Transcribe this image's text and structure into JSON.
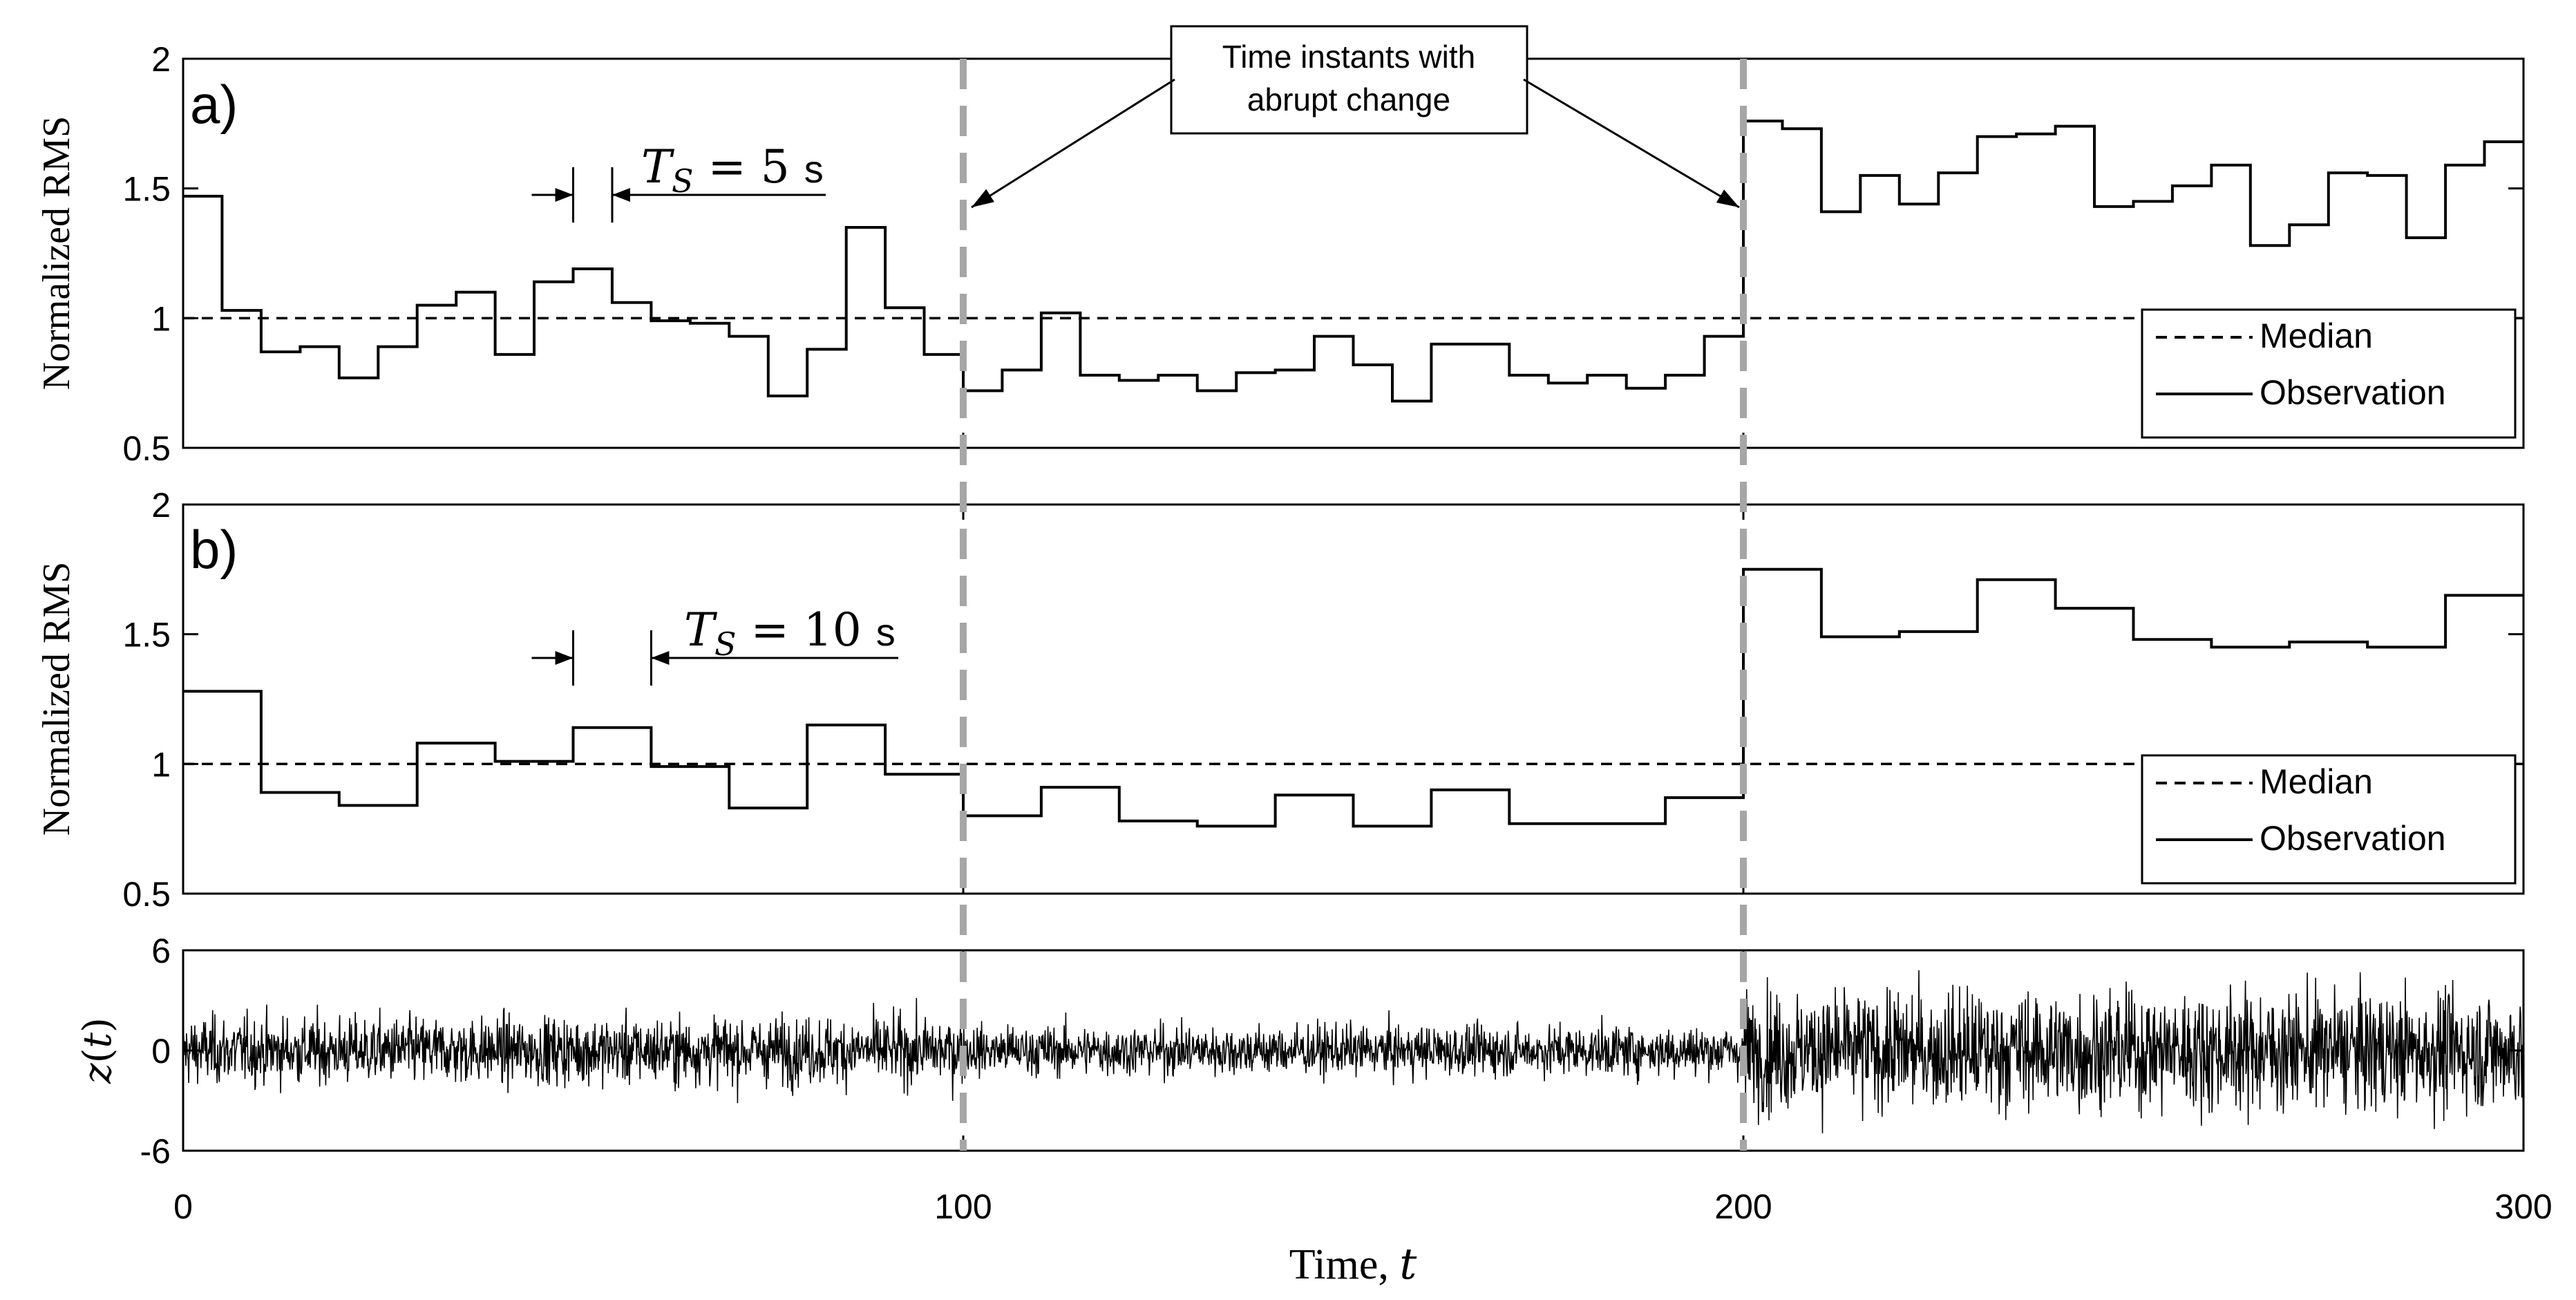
{
  "chart_data": [
    {
      "id": "a",
      "type": "line",
      "style": "step",
      "panel_label": "a)",
      "ylabel": "Normalized RMS",
      "xlim": [
        0,
        300
      ],
      "ylim": [
        0.5,
        2
      ],
      "yticks": [
        "0.5",
        "1",
        "1.5",
        "2"
      ],
      "ytick_values": [
        0.5,
        1,
        1.5,
        2
      ],
      "sampling": {
        "symbol": "T",
        "subscript": "S",
        "eq": "= 5",
        "unit": "s",
        "bracket": [
          50,
          55
        ]
      },
      "series": [
        {
          "name": "Median",
          "style": "dashed",
          "values": [
            1.0,
            1.0
          ],
          "x": [
            0,
            300
          ]
        },
        {
          "name": "Observation",
          "style": "solid",
          "step": 5,
          "values": [
            1.47,
            1.03,
            0.87,
            0.89,
            0.77,
            0.89,
            1.05,
            1.1,
            0.86,
            1.14,
            1.19,
            1.06,
            0.99,
            0.98,
            0.93,
            0.7,
            0.88,
            1.35,
            1.04,
            0.86,
            0.72,
            0.8,
            1.02,
            0.78,
            0.76,
            0.78,
            0.72,
            0.79,
            0.8,
            0.93,
            0.82,
            0.68,
            0.9,
            0.9,
            0.78,
            0.75,
            0.78,
            0.73,
            0.78,
            0.93,
            1.76,
            1.73,
            1.41,
            1.55,
            1.44,
            1.56,
            1.7,
            1.71,
            1.74,
            1.43,
            1.45,
            1.51,
            1.59,
            1.28,
            1.36,
            1.56,
            1.55,
            1.31,
            1.59,
            1.68
          ]
        }
      ],
      "legend": {
        "position": "bottom-right",
        "entries": [
          "Median",
          "Observation"
        ]
      }
    },
    {
      "id": "b",
      "type": "line",
      "style": "step",
      "panel_label": "b)",
      "ylabel": "Normalized RMS",
      "xlim": [
        0,
        300
      ],
      "ylim": [
        0.5,
        2
      ],
      "yticks": [
        "0.5",
        "1",
        "1.5",
        "2"
      ],
      "ytick_values": [
        0.5,
        1,
        1.5,
        2
      ],
      "sampling": {
        "symbol": "T",
        "subscript": "S",
        "eq": "= 10",
        "unit": "s",
        "bracket": [
          50,
          60
        ]
      },
      "series": [
        {
          "name": "Median",
          "style": "dashed",
          "values": [
            1.0,
            1.0
          ],
          "x": [
            0,
            300
          ]
        },
        {
          "name": "Observation",
          "style": "solid",
          "step": 10,
          "values": [
            1.28,
            0.89,
            0.84,
            1.08,
            1.01,
            1.14,
            0.99,
            0.83,
            1.15,
            0.96,
            0.8,
            0.91,
            0.78,
            0.76,
            0.88,
            0.76,
            0.9,
            0.77,
            0.77,
            0.87,
            1.75,
            1.49,
            1.51,
            1.71,
            1.6,
            1.48,
            1.45,
            1.47,
            1.45,
            1.65
          ]
        }
      ],
      "legend": {
        "position": "bottom-right",
        "entries": [
          "Median",
          "Observation"
        ]
      }
    },
    {
      "id": "c",
      "type": "line",
      "style": "signal",
      "ylabel": "z(t)",
      "ylabel_parts": {
        "fn": "z",
        "open": "(",
        "arg": "t",
        "close": ")"
      },
      "xlim": [
        0,
        300
      ],
      "ylim": [
        -6,
        6
      ],
      "yticks": [
        "-6",
        "0",
        "6"
      ],
      "ytick_values": [
        -6,
        0,
        6
      ],
      "series": [
        {
          "name": "z(t)",
          "segments": [
            {
              "from": 0,
              "to": 100,
              "std": 1.0
            },
            {
              "from": 100,
              "to": 200,
              "std": 0.75
            },
            {
              "from": 200,
              "to": 300,
              "std": 1.75
            }
          ]
        }
      ]
    }
  ],
  "x_axis": {
    "ticks": [
      "0",
      "100",
      "200",
      "300"
    ],
    "tick_values": [
      0,
      100,
      200,
      300
    ],
    "label": {
      "text": "Time,",
      "var": "t"
    }
  },
  "change_points": [
    100,
    200
  ],
  "annotation": {
    "lines": [
      "Time instants with",
      "abrupt change"
    ]
  },
  "colors": {
    "line": "#000000",
    "change_marker": "#a6a6a6",
    "background": "#ffffff"
  }
}
